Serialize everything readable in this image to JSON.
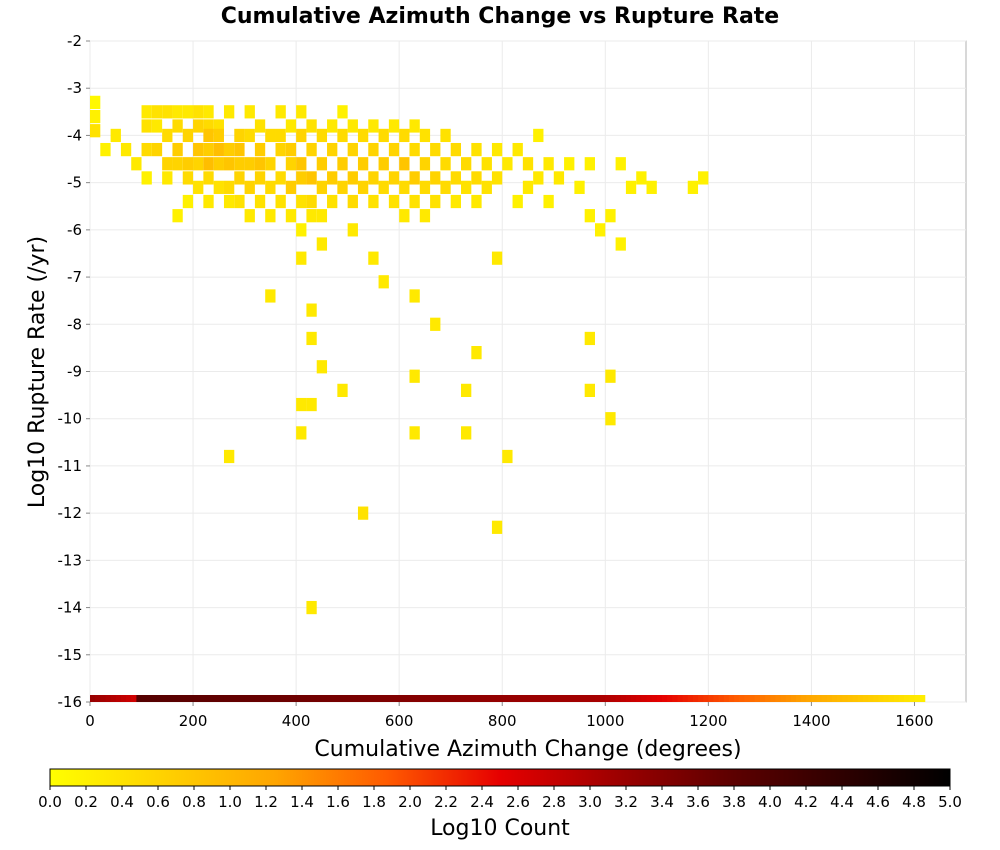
{
  "chart_data": {
    "type": "heatmap",
    "title": "Cumulative Azimuth Change vs Rupture Rate",
    "xlabel": "Cumulative Azimuth Change (degrees)",
    "ylabel": "Log10 Rupture Rate (/yr)",
    "xlim": [
      0,
      1700
    ],
    "ylim": [
      -16,
      -2
    ],
    "x_ticks": [
      "0",
      "200",
      "400",
      "600",
      "800",
      "1000",
      "1200",
      "1400",
      "1600"
    ],
    "y_ticks": [
      "-2",
      "-3",
      "-4",
      "-5",
      "-6",
      "-7",
      "-8",
      "-9",
      "-10",
      "-11",
      "-12",
      "-13",
      "-14",
      "-15",
      "-16"
    ],
    "grid": true,
    "bin_width_x": 20,
    "bin_height_y": 0.28,
    "colorbar": {
      "label": "Log10 Count",
      "min": 0.0,
      "max": 5.0,
      "ticks": [
        "0.0",
        "0.2",
        "0.4",
        "0.6",
        "0.8",
        "1.0",
        "1.2",
        "1.4",
        "1.6",
        "1.8",
        "2.0",
        "2.2",
        "2.4",
        "2.6",
        "2.8",
        "3.0",
        "3.2",
        "3.4",
        "3.6",
        "3.8",
        "4.0",
        "4.2",
        "4.4",
        "4.6",
        "4.8",
        "5.0"
      ],
      "stops": [
        "#ffff00",
        "#ffd200",
        "#ffa500",
        "#ff5a00",
        "#e60000",
        "#a00000",
        "#600000",
        "#300000",
        "#000000"
      ]
    },
    "cells": [
      {
        "x": 10,
        "y": -3.3,
        "v": 0.1
      },
      {
        "x": 10,
        "y": -3.6,
        "v": 0.2
      },
      {
        "x": 10,
        "y": -3.9,
        "v": 0.4
      },
      {
        "x": 30,
        "y": -4.3,
        "v": 0.2
      },
      {
        "x": 50,
        "y": -4.0,
        "v": 0.3
      },
      {
        "x": 70,
        "y": -4.3,
        "v": 0.3
      },
      {
        "x": 90,
        "y": -4.6,
        "v": 0.3
      },
      {
        "x": 110,
        "y": -3.5,
        "v": 0.3
      },
      {
        "x": 110,
        "y": -3.8,
        "v": 0.4
      },
      {
        "x": 110,
        "y": -4.3,
        "v": 0.5
      },
      {
        "x": 110,
        "y": -4.9,
        "v": 0.2
      },
      {
        "x": 130,
        "y": -3.5,
        "v": 0.4
      },
      {
        "x": 130,
        "y": -3.8,
        "v": 0.3
      },
      {
        "x": 130,
        "y": -4.3,
        "v": 0.6
      },
      {
        "x": 150,
        "y": -3.5,
        "v": 0.4
      },
      {
        "x": 150,
        "y": -4.0,
        "v": 0.5
      },
      {
        "x": 150,
        "y": -4.6,
        "v": 0.6
      },
      {
        "x": 150,
        "y": -4.9,
        "v": 0.3
      },
      {
        "x": 170,
        "y": -3.5,
        "v": 0.3
      },
      {
        "x": 170,
        "y": -3.8,
        "v": 0.5
      },
      {
        "x": 170,
        "y": -4.3,
        "v": 0.7
      },
      {
        "x": 170,
        "y": -4.6,
        "v": 0.6
      },
      {
        "x": 170,
        "y": -5.7,
        "v": 0.2
      },
      {
        "x": 190,
        "y": -3.5,
        "v": 0.3
      },
      {
        "x": 190,
        "y": -4.0,
        "v": 0.6
      },
      {
        "x": 190,
        "y": -4.6,
        "v": 0.7
      },
      {
        "x": 190,
        "y": -4.9,
        "v": 0.5
      },
      {
        "x": 190,
        "y": -5.4,
        "v": 0.2
      },
      {
        "x": 210,
        "y": -3.5,
        "v": 0.4
      },
      {
        "x": 210,
        "y": -3.8,
        "v": 0.6
      },
      {
        "x": 210,
        "y": -4.3,
        "v": 0.8
      },
      {
        "x": 210,
        "y": -4.6,
        "v": 0.6
      },
      {
        "x": 210,
        "y": -5.1,
        "v": 0.4
      },
      {
        "x": 230,
        "y": -3.5,
        "v": 0.3
      },
      {
        "x": 230,
        "y": -3.8,
        "v": 0.5
      },
      {
        "x": 230,
        "y": -4.0,
        "v": 0.8
      },
      {
        "x": 230,
        "y": -4.3,
        "v": 0.7
      },
      {
        "x": 230,
        "y": -4.6,
        "v": 0.9
      },
      {
        "x": 230,
        "y": -4.9,
        "v": 0.5
      },
      {
        "x": 230,
        "y": -5.4,
        "v": 0.3
      },
      {
        "x": 250,
        "y": -3.8,
        "v": 0.4
      },
      {
        "x": 250,
        "y": -4.0,
        "v": 0.7
      },
      {
        "x": 250,
        "y": -4.3,
        "v": 0.9
      },
      {
        "x": 250,
        "y": -4.6,
        "v": 0.7
      },
      {
        "x": 250,
        "y": -5.1,
        "v": 0.4
      },
      {
        "x": 270,
        "y": -3.5,
        "v": 0.3
      },
      {
        "x": 270,
        "y": -4.3,
        "v": 0.7
      },
      {
        "x": 270,
        "y": -4.6,
        "v": 0.8
      },
      {
        "x": 270,
        "y": -5.1,
        "v": 0.5
      },
      {
        "x": 270,
        "y": -5.4,
        "v": 0.3
      },
      {
        "x": 270,
        "y": -10.8,
        "v": 0.3
      },
      {
        "x": 290,
        "y": -4.0,
        "v": 0.6
      },
      {
        "x": 290,
        "y": -4.3,
        "v": 0.8
      },
      {
        "x": 290,
        "y": -4.6,
        "v": 0.7
      },
      {
        "x": 290,
        "y": -4.9,
        "v": 0.6
      },
      {
        "x": 290,
        "y": -5.4,
        "v": 0.4
      },
      {
        "x": 310,
        "y": -3.5,
        "v": 0.3
      },
      {
        "x": 310,
        "y": -4.0,
        "v": 0.5
      },
      {
        "x": 310,
        "y": -4.6,
        "v": 0.7
      },
      {
        "x": 310,
        "y": -5.1,
        "v": 0.6
      },
      {
        "x": 310,
        "y": -5.7,
        "v": 0.3
      },
      {
        "x": 330,
        "y": -3.8,
        "v": 0.4
      },
      {
        "x": 330,
        "y": -4.3,
        "v": 0.7
      },
      {
        "x": 330,
        "y": -4.6,
        "v": 0.8
      },
      {
        "x": 330,
        "y": -4.9,
        "v": 0.6
      },
      {
        "x": 330,
        "y": -5.4,
        "v": 0.4
      },
      {
        "x": 350,
        "y": -4.0,
        "v": 0.5
      },
      {
        "x": 350,
        "y": -4.6,
        "v": 0.6
      },
      {
        "x": 350,
        "y": -5.1,
        "v": 0.5
      },
      {
        "x": 350,
        "y": -5.7,
        "v": 0.3
      },
      {
        "x": 350,
        "y": -7.4,
        "v": 0.3
      },
      {
        "x": 370,
        "y": -3.5,
        "v": 0.3
      },
      {
        "x": 370,
        "y": -4.0,
        "v": 0.5
      },
      {
        "x": 370,
        "y": -4.3,
        "v": 0.6
      },
      {
        "x": 370,
        "y": -4.9,
        "v": 0.5
      },
      {
        "x": 370,
        "y": -5.4,
        "v": 0.4
      },
      {
        "x": 390,
        "y": -3.8,
        "v": 0.3
      },
      {
        "x": 390,
        "y": -4.3,
        "v": 0.7
      },
      {
        "x": 390,
        "y": -4.6,
        "v": 0.6
      },
      {
        "x": 390,
        "y": -5.1,
        "v": 0.7
      },
      {
        "x": 390,
        "y": -5.7,
        "v": 0.3
      },
      {
        "x": 410,
        "y": -3.5,
        "v": 0.3
      },
      {
        "x": 410,
        "y": -4.0,
        "v": 0.6
      },
      {
        "x": 410,
        "y": -4.6,
        "v": 0.8
      },
      {
        "x": 410,
        "y": -4.9,
        "v": 0.7
      },
      {
        "x": 410,
        "y": -5.4,
        "v": 0.4
      },
      {
        "x": 410,
        "y": -6.0,
        "v": 0.2
      },
      {
        "x": 410,
        "y": -6.6,
        "v": 0.3
      },
      {
        "x": 410,
        "y": -9.7,
        "v": 0.3
      },
      {
        "x": 410,
        "y": -10.3,
        "v": 0.3
      },
      {
        "x": 430,
        "y": -3.8,
        "v": 0.4
      },
      {
        "x": 430,
        "y": -4.3,
        "v": 0.6
      },
      {
        "x": 430,
        "y": -4.9,
        "v": 0.8
      },
      {
        "x": 430,
        "y": -5.4,
        "v": 0.5
      },
      {
        "x": 430,
        "y": -5.7,
        "v": 0.3
      },
      {
        "x": 430,
        "y": -7.7,
        "v": 0.3
      },
      {
        "x": 430,
        "y": -8.3,
        "v": 0.3
      },
      {
        "x": 430,
        "y": -9.7,
        "v": 0.3
      },
      {
        "x": 430,
        "y": -14.0,
        "v": 0.3
      },
      {
        "x": 450,
        "y": -4.0,
        "v": 0.5
      },
      {
        "x": 450,
        "y": -4.6,
        "v": 0.7
      },
      {
        "x": 450,
        "y": -5.1,
        "v": 0.6
      },
      {
        "x": 450,
        "y": -5.7,
        "v": 0.3
      },
      {
        "x": 450,
        "y": -6.3,
        "v": 0.3
      },
      {
        "x": 450,
        "y": -8.9,
        "v": 0.3
      },
      {
        "x": 470,
        "y": -3.8,
        "v": 0.3
      },
      {
        "x": 470,
        "y": -4.3,
        "v": 0.6
      },
      {
        "x": 470,
        "y": -4.9,
        "v": 0.7
      },
      {
        "x": 470,
        "y": -5.4,
        "v": 0.4
      },
      {
        "x": 490,
        "y": -3.5,
        "v": 0.2
      },
      {
        "x": 490,
        "y": -4.0,
        "v": 0.5
      },
      {
        "x": 490,
        "y": -4.6,
        "v": 0.7
      },
      {
        "x": 490,
        "y": -5.1,
        "v": 0.6
      },
      {
        "x": 490,
        "y": -9.4,
        "v": 0.3
      },
      {
        "x": 510,
        "y": -3.8,
        "v": 0.3
      },
      {
        "x": 510,
        "y": -4.3,
        "v": 0.6
      },
      {
        "x": 510,
        "y": -4.9,
        "v": 0.7
      },
      {
        "x": 510,
        "y": -5.4,
        "v": 0.5
      },
      {
        "x": 510,
        "y": -6.0,
        "v": 0.3
      },
      {
        "x": 530,
        "y": -4.0,
        "v": 0.5
      },
      {
        "x": 530,
        "y": -4.6,
        "v": 0.7
      },
      {
        "x": 530,
        "y": -5.1,
        "v": 0.6
      },
      {
        "x": 530,
        "y": -12.0,
        "v": 0.4
      },
      {
        "x": 550,
        "y": -3.8,
        "v": 0.3
      },
      {
        "x": 550,
        "y": -4.3,
        "v": 0.6
      },
      {
        "x": 550,
        "y": -4.9,
        "v": 0.6
      },
      {
        "x": 550,
        "y": -5.4,
        "v": 0.4
      },
      {
        "x": 550,
        "y": -6.6,
        "v": 0.3
      },
      {
        "x": 570,
        "y": -4.0,
        "v": 0.5
      },
      {
        "x": 570,
        "y": -4.6,
        "v": 0.7
      },
      {
        "x": 570,
        "y": -5.1,
        "v": 0.5
      },
      {
        "x": 570,
        "y": -7.1,
        "v": 0.3
      },
      {
        "x": 590,
        "y": -3.8,
        "v": 0.3
      },
      {
        "x": 590,
        "y": -4.3,
        "v": 0.6
      },
      {
        "x": 590,
        "y": -4.9,
        "v": 0.6
      },
      {
        "x": 590,
        "y": -5.4,
        "v": 0.4
      },
      {
        "x": 610,
        "y": -4.0,
        "v": 0.5
      },
      {
        "x": 610,
        "y": -4.6,
        "v": 0.8
      },
      {
        "x": 610,
        "y": -5.1,
        "v": 0.5
      },
      {
        "x": 610,
        "y": -5.7,
        "v": 0.3
      },
      {
        "x": 630,
        "y": -3.8,
        "v": 0.3
      },
      {
        "x": 630,
        "y": -4.3,
        "v": 0.5
      },
      {
        "x": 630,
        "y": -4.9,
        "v": 0.7
      },
      {
        "x": 630,
        "y": -5.4,
        "v": 0.4
      },
      {
        "x": 630,
        "y": -7.4,
        "v": 0.3
      },
      {
        "x": 630,
        "y": -9.1,
        "v": 0.3
      },
      {
        "x": 630,
        "y": -10.3,
        "v": 0.3
      },
      {
        "x": 650,
        "y": -4.0,
        "v": 0.4
      },
      {
        "x": 650,
        "y": -4.6,
        "v": 0.6
      },
      {
        "x": 650,
        "y": -5.1,
        "v": 0.5
      },
      {
        "x": 650,
        "y": -5.7,
        "v": 0.3
      },
      {
        "x": 670,
        "y": -4.3,
        "v": 0.5
      },
      {
        "x": 670,
        "y": -4.9,
        "v": 0.6
      },
      {
        "x": 670,
        "y": -5.4,
        "v": 0.4
      },
      {
        "x": 670,
        "y": -8.0,
        "v": 0.3
      },
      {
        "x": 690,
        "y": -4.0,
        "v": 0.4
      },
      {
        "x": 690,
        "y": -4.6,
        "v": 0.5
      },
      {
        "x": 690,
        "y": -5.1,
        "v": 0.5
      },
      {
        "x": 710,
        "y": -4.3,
        "v": 0.5
      },
      {
        "x": 710,
        "y": -4.9,
        "v": 0.5
      },
      {
        "x": 710,
        "y": -5.4,
        "v": 0.3
      },
      {
        "x": 730,
        "y": -4.6,
        "v": 0.5
      },
      {
        "x": 730,
        "y": -5.1,
        "v": 0.4
      },
      {
        "x": 730,
        "y": -9.4,
        "v": 0.3
      },
      {
        "x": 730,
        "y": -10.3,
        "v": 0.3
      },
      {
        "x": 750,
        "y": -4.3,
        "v": 0.4
      },
      {
        "x": 750,
        "y": -4.9,
        "v": 0.5
      },
      {
        "x": 750,
        "y": -5.4,
        "v": 0.3
      },
      {
        "x": 750,
        "y": -8.6,
        "v": 0.3
      },
      {
        "x": 770,
        "y": -4.6,
        "v": 0.4
      },
      {
        "x": 770,
        "y": -5.1,
        "v": 0.4
      },
      {
        "x": 790,
        "y": -4.3,
        "v": 0.3
      },
      {
        "x": 790,
        "y": -4.9,
        "v": 0.4
      },
      {
        "x": 790,
        "y": -6.6,
        "v": 0.3
      },
      {
        "x": 790,
        "y": -12.3,
        "v": 0.3
      },
      {
        "x": 810,
        "y": -4.6,
        "v": 0.3
      },
      {
        "x": 810,
        "y": -10.8,
        "v": 0.3
      },
      {
        "x": 830,
        "y": -4.3,
        "v": 0.3
      },
      {
        "x": 830,
        "y": -5.4,
        "v": 0.2
      },
      {
        "x": 850,
        "y": -4.6,
        "v": 0.4
      },
      {
        "x": 850,
        "y": -5.1,
        "v": 0.3
      },
      {
        "x": 870,
        "y": -4.0,
        "v": 0.2
      },
      {
        "x": 870,
        "y": -4.9,
        "v": 0.3
      },
      {
        "x": 890,
        "y": -4.6,
        "v": 0.3
      },
      {
        "x": 890,
        "y": -5.4,
        "v": 0.2
      },
      {
        "x": 910,
        "y": -4.9,
        "v": 0.3
      },
      {
        "x": 930,
        "y": -4.6,
        "v": 0.2
      },
      {
        "x": 950,
        "y": -5.1,
        "v": 0.2
      },
      {
        "x": 970,
        "y": -4.6,
        "v": 0.2
      },
      {
        "x": 970,
        "y": -5.7,
        "v": 0.2
      },
      {
        "x": 970,
        "y": -8.3,
        "v": 0.3
      },
      {
        "x": 970,
        "y": -9.4,
        "v": 0.3
      },
      {
        "x": 990,
        "y": -6.0,
        "v": 0.2
      },
      {
        "x": 1010,
        "y": -5.7,
        "v": 0.2
      },
      {
        "x": 1010,
        "y": -9.1,
        "v": 0.3
      },
      {
        "x": 1010,
        "y": -10.0,
        "v": 0.3
      },
      {
        "x": 1030,
        "y": -4.6,
        "v": 0.2
      },
      {
        "x": 1030,
        "y": -6.3,
        "v": 0.2
      },
      {
        "x": 1050,
        "y": -5.1,
        "v": 0.2
      },
      {
        "x": 1070,
        "y": -4.9,
        "v": 0.2
      },
      {
        "x": 1090,
        "y": -5.1,
        "v": 0.2
      },
      {
        "x": 1170,
        "y": -5.1,
        "v": 0.2
      },
      {
        "x": 1190,
        "y": -4.9,
        "v": 0.2
      }
    ],
    "bottom_row": {
      "y": -16,
      "x_start": 0,
      "x_end": 1620
    }
  }
}
